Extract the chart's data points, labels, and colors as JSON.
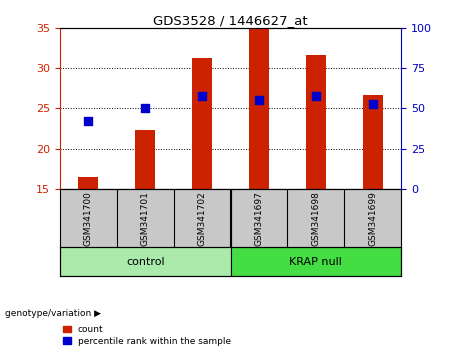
{
  "title": "GDS3528 / 1446627_at",
  "categories": [
    "GSM341700",
    "GSM341701",
    "GSM341702",
    "GSM341697",
    "GSM341698",
    "GSM341699"
  ],
  "count_values": [
    16.5,
    22.3,
    31.3,
    35.0,
    31.7,
    26.7
  ],
  "percentile_values": [
    42.5,
    50.0,
    57.5,
    55.0,
    57.5,
    52.5
  ],
  "ylim_left": [
    15,
    35
  ],
  "ylim_right": [
    0,
    100
  ],
  "yticks_left": [
    15,
    20,
    25,
    30,
    35
  ],
  "yticks_right": [
    0,
    25,
    50,
    75,
    100
  ],
  "groups": [
    {
      "label": "control",
      "span": [
        0,
        3
      ],
      "color": "#aaeaaa"
    },
    {
      "label": "KRAP null",
      "span": [
        3,
        6
      ],
      "color": "#44dd44"
    }
  ],
  "bar_color": "#cc2200",
  "dot_color": "#0000cc",
  "left_tick_color": "#cc2200",
  "right_tick_color": "#0000bb",
  "bar_width": 0.35,
  "dot_size": 28,
  "legend_items": [
    "count",
    "percentile rank within the sample"
  ],
  "genotype_label": "genotype/variation",
  "group_label_bg": "#c8c8c8",
  "separator_color": "#333333"
}
